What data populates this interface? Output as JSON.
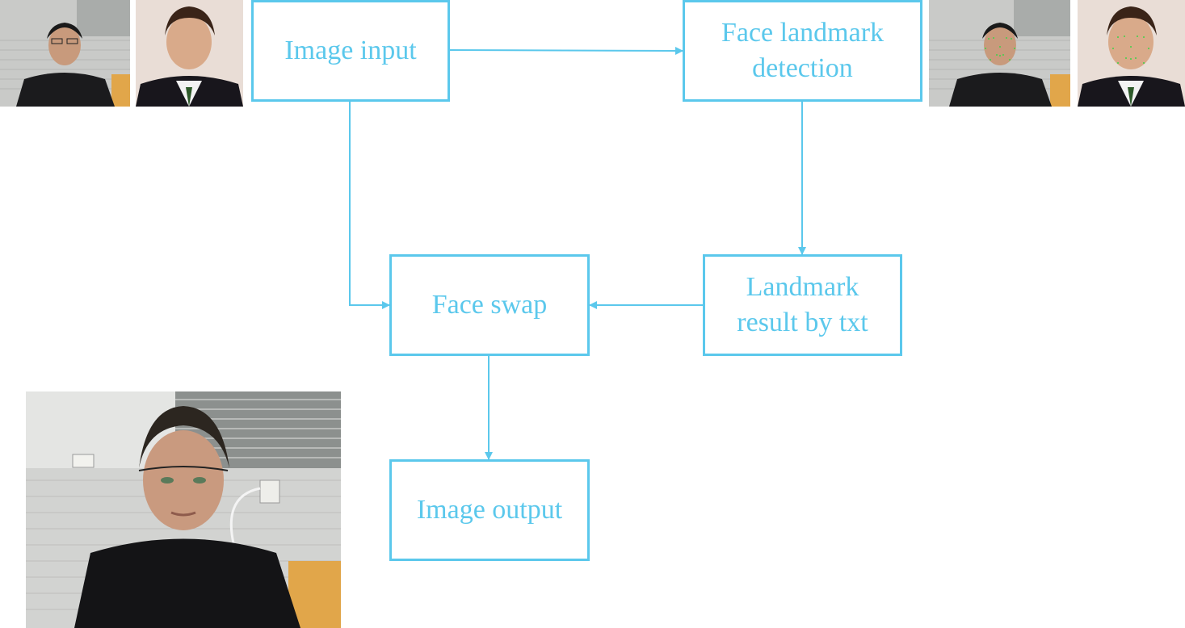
{
  "diagram": {
    "nodes": {
      "image_input": "Image input",
      "face_landmark_detection": "Face landmark\ndetection",
      "landmark_result": "Landmark\nresult by txt",
      "face_swap": "Face swap",
      "image_output": "Image output"
    },
    "edges": [
      {
        "from": "image_input",
        "to": "face_landmark_detection"
      },
      {
        "from": "face_landmark_detection",
        "to": "landmark_result"
      },
      {
        "from": "landmark_result",
        "to": "face_swap"
      },
      {
        "from": "image_input",
        "to": "face_swap"
      },
      {
        "from": "face_swap",
        "to": "image_output"
      }
    ],
    "colors": {
      "accent": "#5bc8ec"
    }
  }
}
